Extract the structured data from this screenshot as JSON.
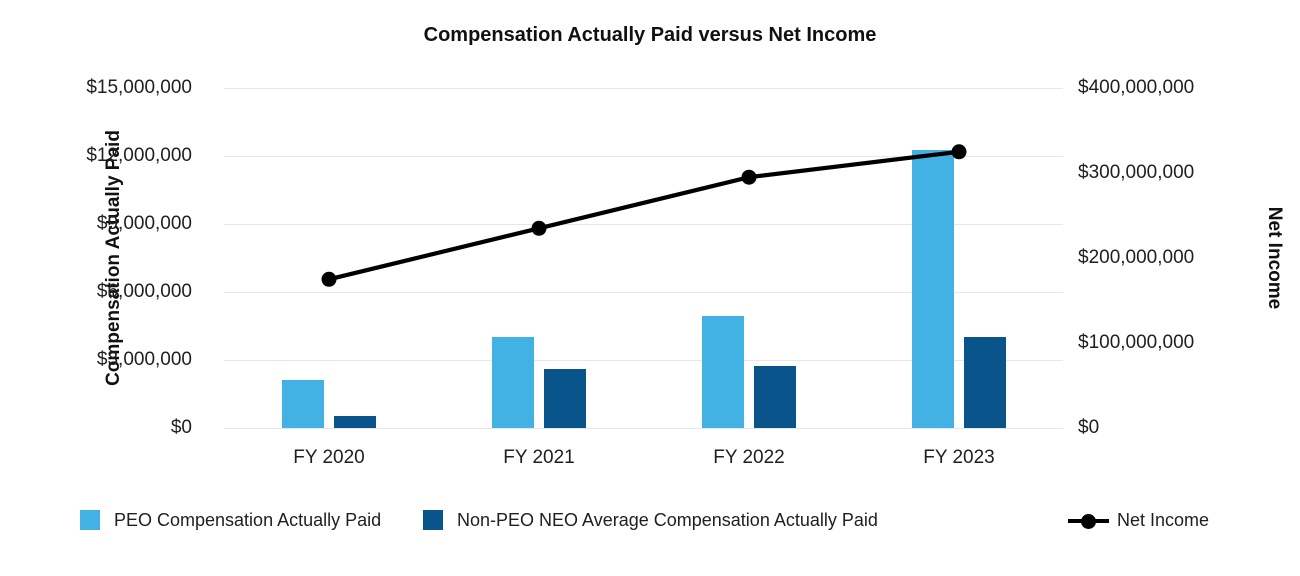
{
  "title": "Compensation Actually Paid versus Net Income",
  "left_axis": {
    "title": "Compensation Actually Paid",
    "min": 0,
    "max": 15000000,
    "tick_labels": [
      "$15,000,000",
      "$12,000,000",
      "$9,000,000",
      "$6,000,000",
      "$3,000,000",
      "$0"
    ]
  },
  "right_axis": {
    "title": "Net Income",
    "min": 0,
    "max": 400000000,
    "tick_labels": [
      "$400,000,000",
      "$300,000,000",
      "$200,000,000",
      "$100,000,000",
      "$0"
    ]
  },
  "chart_data": {
    "type": "combo: grouped bar + line",
    "categories": [
      "FY 2020",
      "FY 2021",
      "FY 2022",
      "FY 2023"
    ],
    "series": [
      {
        "name": "PEO Compensation Actually Paid",
        "type": "bar",
        "axis": "left",
        "color": "#41B2E3",
        "values": [
          2100000,
          4000000,
          4950000,
          12250000
        ]
      },
      {
        "name": "Non-PEO NEO Average Compensation Actually Paid",
        "type": "bar",
        "axis": "left",
        "color": "#09548A",
        "values": [
          550000,
          2600000,
          2750000,
          4000000
        ]
      },
      {
        "name": "Net Income",
        "type": "line",
        "axis": "right",
        "color": "#000000",
        "values": [
          175000000,
          235000000,
          295000000,
          325000000
        ]
      }
    ],
    "left_ylim": [
      0,
      15000000
    ],
    "right_ylim": [
      0,
      400000000
    ],
    "grid": "horizontal",
    "legend_position": "bottom"
  },
  "colors": {
    "peo_bar": "#41B2E3",
    "non_peo_bar": "#09548A",
    "net_income_line": "#000000",
    "gridline": "#e7e7e9",
    "text": "#1f1f1f"
  }
}
